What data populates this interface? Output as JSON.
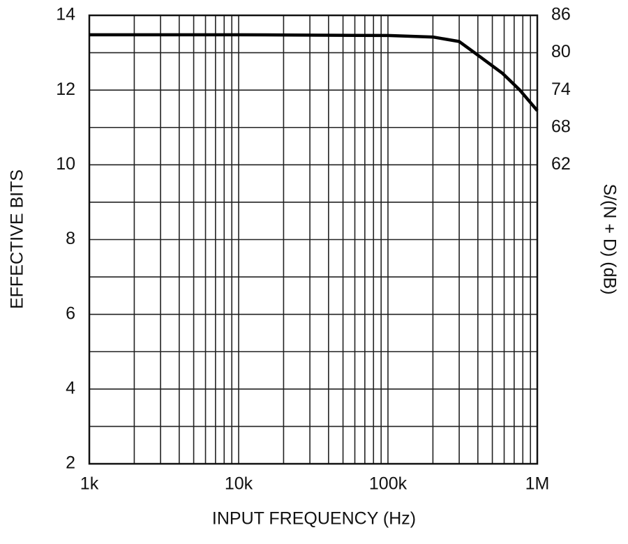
{
  "chart_data": {
    "type": "line",
    "xlabel": "INPUT FREQUENCY (Hz)",
    "ylabel": "EFFECTIVE BITS",
    "y2label": "S/(N + D) (dB)",
    "x": [
      1000,
      10000,
      100000,
      200000,
      300000,
      380000,
      584000,
      764000,
      1000000
    ],
    "values": [
      13.48,
      13.48,
      13.46,
      13.42,
      13.3,
      13.0,
      12.45,
      12.0,
      11.45
    ],
    "color": "#000000",
    "xscale": "log",
    "xlim": [
      1000,
      1000000
    ],
    "xticks": [
      {
        "value": 1000,
        "label": "1k"
      },
      {
        "value": 10000,
        "label": "10k"
      },
      {
        "value": 100000,
        "label": "100k"
      },
      {
        "value": 1000000,
        "label": "1M"
      }
    ],
    "xminorticks": [
      2000,
      3000,
      4000,
      5000,
      6000,
      7000,
      8000,
      9000,
      20000,
      30000,
      40000,
      50000,
      60000,
      70000,
      80000,
      90000,
      200000,
      300000,
      400000,
      500000,
      600000,
      700000,
      800000,
      900000
    ],
    "ylim": [
      2,
      14
    ],
    "yticks": [
      2,
      4,
      6,
      8,
      10,
      12,
      14
    ],
    "yminorticks": [
      3,
      5,
      7,
      9,
      11,
      13
    ],
    "y2lim": [
      14,
      86
    ],
    "y2ticks": [
      62,
      68,
      74,
      80,
      86
    ],
    "grid": true
  }
}
